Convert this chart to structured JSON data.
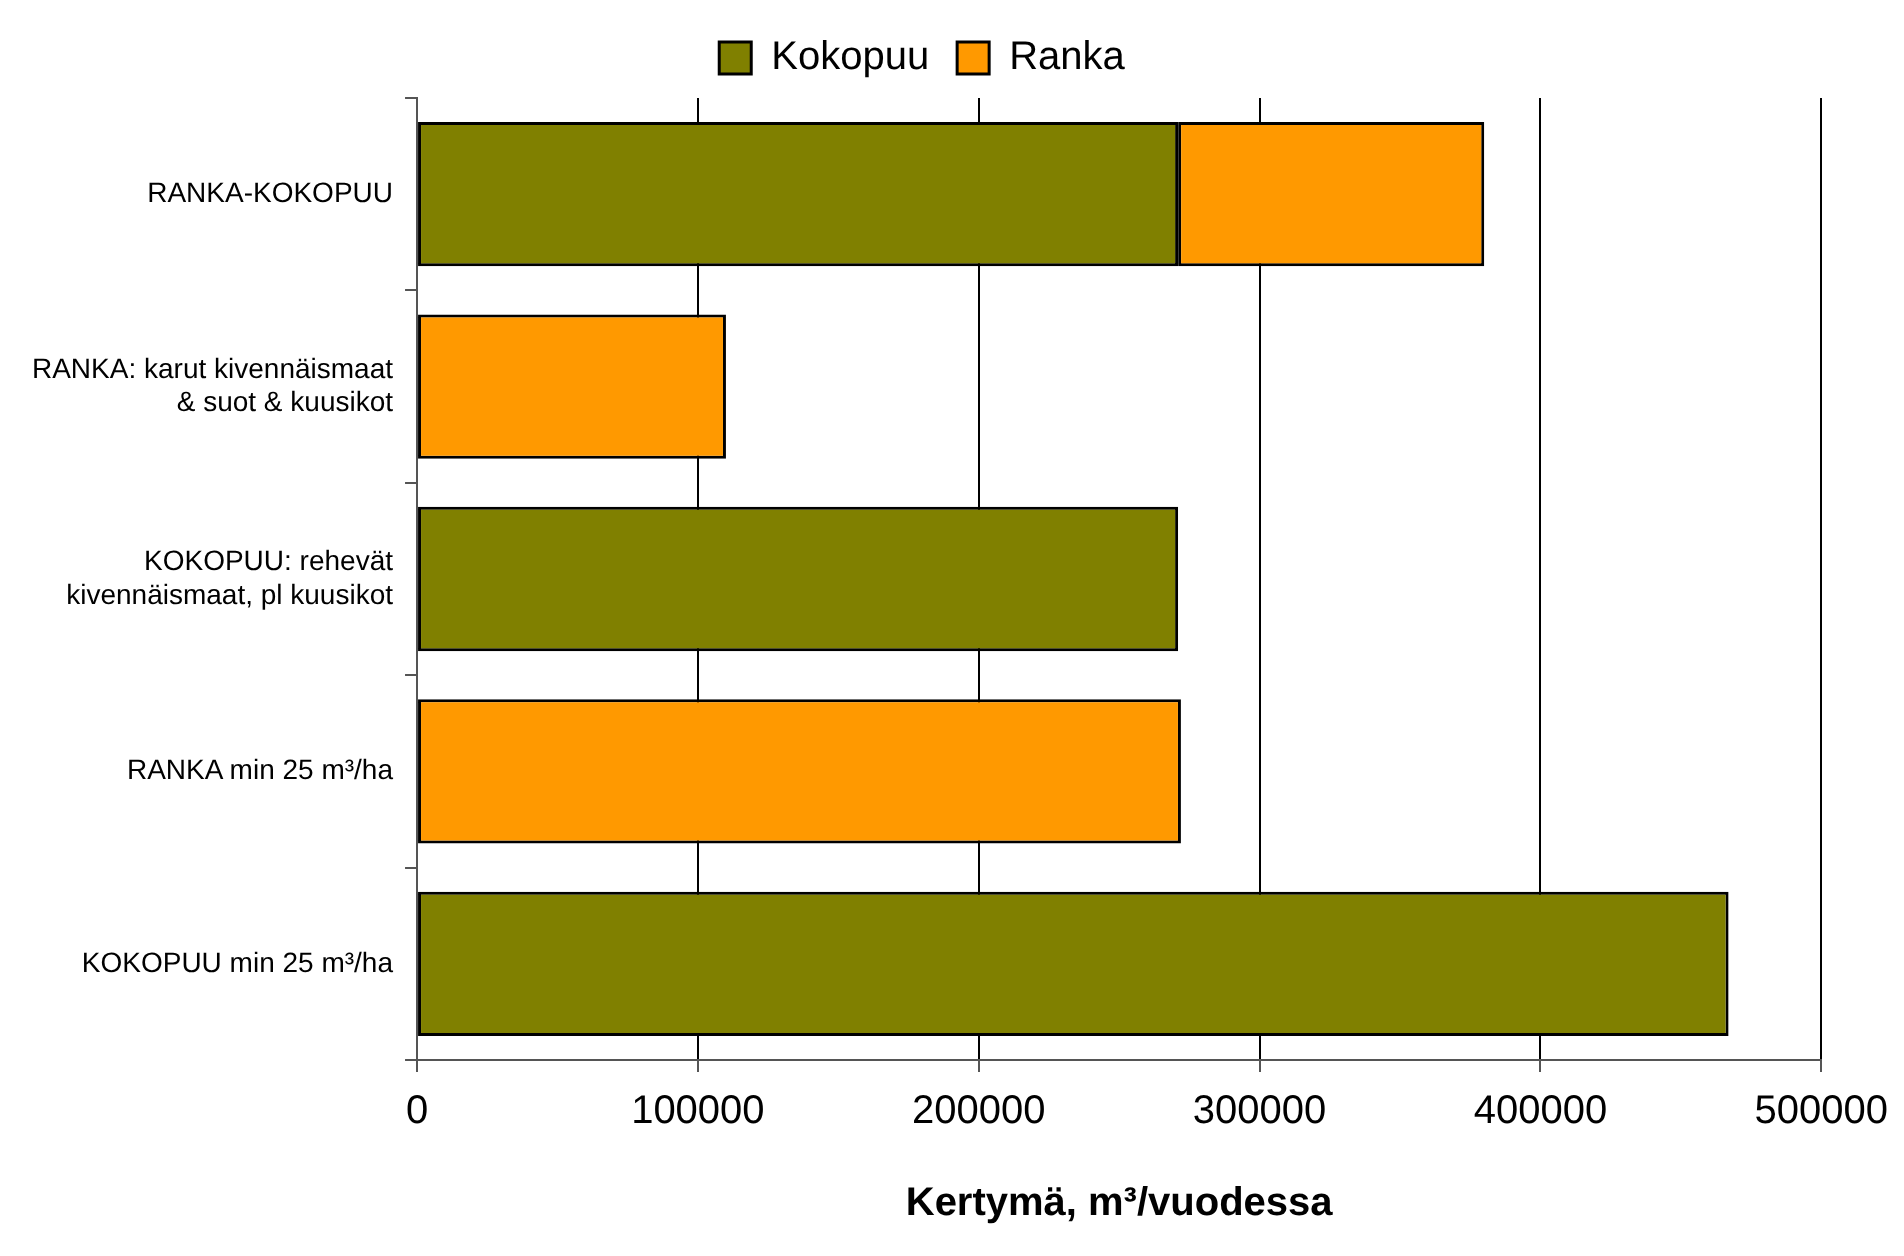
{
  "chart_data": {
    "type": "bar",
    "orientation": "horizontal",
    "stacked": true,
    "categories": [
      "RANKA-KOKOPUU",
      "RANKA: karut kivennäismaat & suot & kuusikot",
      "KOKOPUU: rehevät kivennäismaat, pl kuusikot",
      "RANKA min 25 m³/ha",
      "KOKOPUU min 25 m³/ha"
    ],
    "series": [
      {
        "name": "Kokopuu",
        "color": "#808000",
        "values": [
          271000,
          null,
          271000,
          null,
          467000
        ]
      },
      {
        "name": "Ranka",
        "color": "#ff9900",
        "values": [
          109000,
          110000,
          null,
          272000,
          null
        ]
      }
    ],
    "xlabel": "Kertymä, m³/vuodessa",
    "xlim": [
      0,
      500000
    ],
    "xticks": [
      0,
      100000,
      200000,
      300000,
      400000,
      500000
    ],
    "grid": "x",
    "legend": "top"
  }
}
